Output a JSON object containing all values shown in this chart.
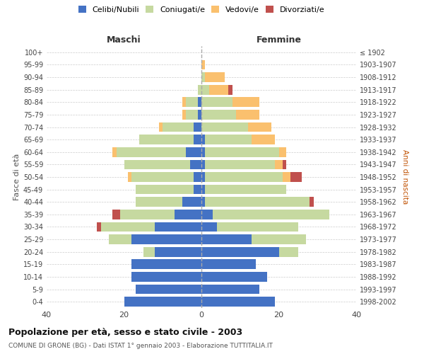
{
  "age_groups": [
    "0-4",
    "5-9",
    "10-14",
    "15-19",
    "20-24",
    "25-29",
    "30-34",
    "35-39",
    "40-44",
    "45-49",
    "50-54",
    "55-59",
    "60-64",
    "65-69",
    "70-74",
    "75-79",
    "80-84",
    "85-89",
    "90-94",
    "95-99",
    "100+"
  ],
  "birth_years": [
    "1998-2002",
    "1993-1997",
    "1988-1992",
    "1983-1987",
    "1978-1982",
    "1973-1977",
    "1968-1972",
    "1963-1967",
    "1958-1962",
    "1953-1957",
    "1948-1952",
    "1943-1947",
    "1938-1942",
    "1933-1937",
    "1928-1932",
    "1923-1927",
    "1918-1922",
    "1913-1917",
    "1908-1912",
    "1903-1907",
    "≤ 1902"
  ],
  "colors": {
    "celibe": "#4472C4",
    "coniugato": "#C6D9A0",
    "vedovo": "#FAC06E",
    "divorziato": "#C0504D"
  },
  "maschi": {
    "celibe": [
      20,
      17,
      18,
      18,
      12,
      18,
      12,
      7,
      5,
      2,
      2,
      3,
      4,
      2,
      2,
      1,
      1,
      0,
      0,
      0,
      0
    ],
    "coniugato": [
      0,
      0,
      0,
      0,
      3,
      6,
      14,
      14,
      12,
      15,
      16,
      17,
      18,
      14,
      8,
      3,
      3,
      1,
      0,
      0,
      0
    ],
    "vedovo": [
      0,
      0,
      0,
      0,
      0,
      0,
      0,
      0,
      0,
      0,
      1,
      0,
      1,
      0,
      1,
      1,
      1,
      0,
      0,
      0,
      0
    ],
    "divorziato": [
      0,
      0,
      0,
      0,
      0,
      0,
      1,
      2,
      0,
      0,
      0,
      0,
      0,
      0,
      0,
      0,
      0,
      0,
      0,
      0,
      0
    ]
  },
  "femmine": {
    "nubile": [
      19,
      15,
      17,
      14,
      20,
      13,
      4,
      3,
      1,
      1,
      1,
      1,
      1,
      1,
      0,
      0,
      0,
      0,
      0,
      0,
      0
    ],
    "coniugata": [
      0,
      0,
      0,
      0,
      5,
      14,
      21,
      30,
      27,
      21,
      20,
      18,
      19,
      12,
      12,
      9,
      8,
      2,
      1,
      0,
      0
    ],
    "vedova": [
      0,
      0,
      0,
      0,
      0,
      0,
      0,
      0,
      0,
      0,
      2,
      2,
      2,
      6,
      6,
      6,
      7,
      5,
      5,
      1,
      0
    ],
    "divorziata": [
      0,
      0,
      0,
      0,
      0,
      0,
      0,
      0,
      1,
      0,
      3,
      1,
      0,
      0,
      0,
      0,
      0,
      1,
      0,
      0,
      0
    ]
  },
  "title": "Popolazione per età, sesso e stato civile - 2003",
  "subtitle": "COMUNE DI GRONE (BG) - Dati ISTAT 1° gennaio 2003 - Elaborazione TUTTITALIA.IT",
  "xlabel_left": "Maschi",
  "xlabel_right": "Femmine",
  "ylabel_left": "Fasce di età",
  "ylabel_right": "Anni di nascita",
  "xlim": 40,
  "legend_labels": [
    "Celibi/Nubili",
    "Coniugati/e",
    "Vedovi/e",
    "Divorziati/e"
  ],
  "bg_color": "#FFFFFF",
  "grid_color": "#CCCCCC"
}
